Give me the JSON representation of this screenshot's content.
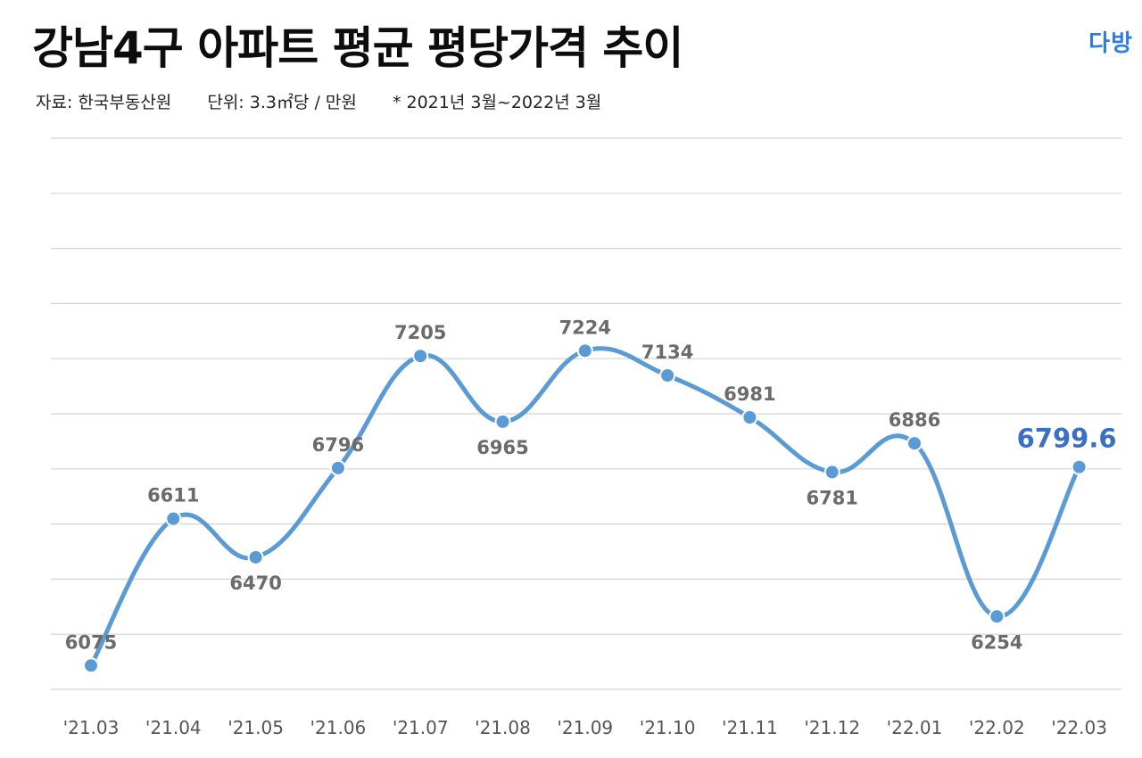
{
  "header": {
    "title": "강남4구 아파트 평균 평당가격 추이",
    "source": "자료: 한국부동산원",
    "unit": "단위: 3.3㎡당 / 만원",
    "period": "* 2021년 3월~2022년 3월",
    "brand": "다방"
  },
  "colors": {
    "line": "#5b9bd5",
    "highlight_label": "#3a6fc4",
    "label": "#6b6b6b"
  },
  "chart_data": {
    "type": "line",
    "title": "강남4구 아파트 평균 평당가격 추이",
    "xlabel": "",
    "ylabel": "",
    "categories": [
      "'21.03",
      "'21.04",
      "'21.05",
      "'21.06",
      "'21.07",
      "'21.08",
      "'21.09",
      "'21.10",
      "'21.11",
      "'21.12",
      "'22.01",
      "'22.02",
      "'22.03"
    ],
    "series": [
      {
        "name": "평균 평당가격",
        "values": [
          6075,
          6611,
          6470,
          6796,
          7205,
          6965,
          7224,
          7134,
          6981,
          6781,
          6886,
          6254,
          6799.6
        ],
        "labels": [
          "6075",
          "6611",
          "6470",
          "6796",
          "7205",
          "6965",
          "7224",
          "7134",
          "6981",
          "6781",
          "6886",
          "6254",
          "6799.6"
        ],
        "label_positions": [
          "above",
          "above",
          "below",
          "above",
          "above",
          "below",
          "above",
          "above",
          "above",
          "below",
          "above",
          "below",
          "above"
        ]
      }
    ],
    "ylim": [
      5988,
      8000
    ],
    "gridlines": 11,
    "grid": true,
    "highlight_last": true
  }
}
